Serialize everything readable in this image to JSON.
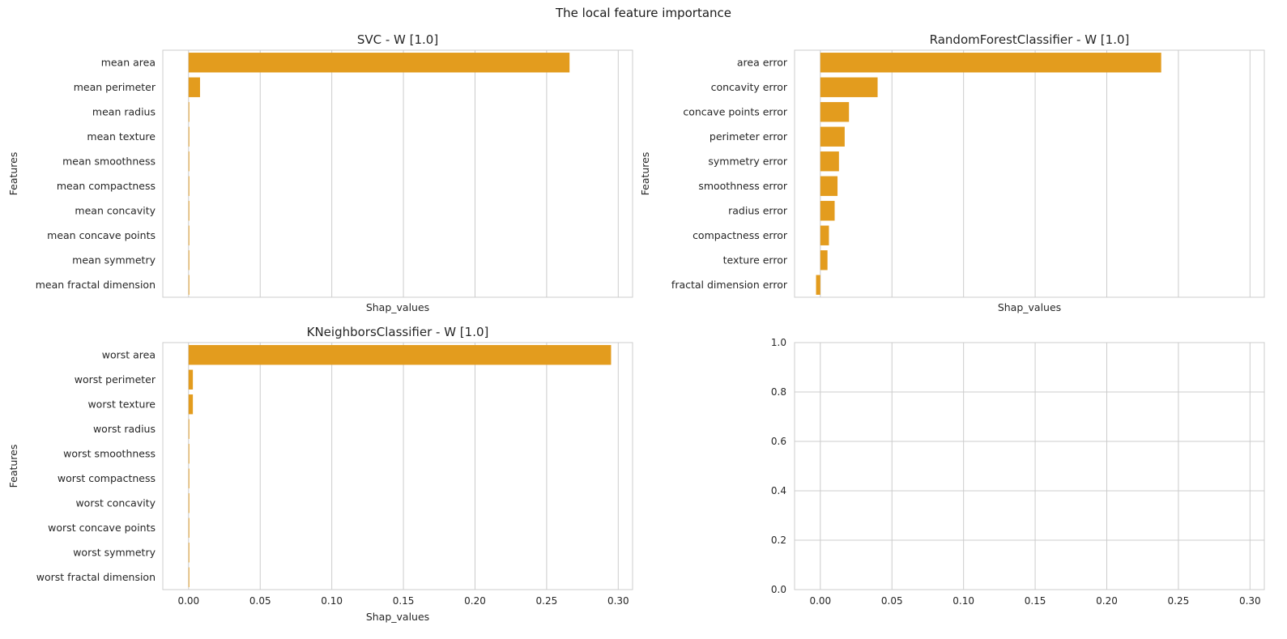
{
  "figure": {
    "title": "The local feature importance"
  },
  "colors": {
    "bar": "#E39C1E",
    "grid": "#cccccc",
    "frame": "#cccccc"
  },
  "chart_data": [
    {
      "type": "bar",
      "orientation": "horizontal",
      "title": "SVC - W [1.0]",
      "xlabel": "Shap_values",
      "ylabel": "Features",
      "xlim": [
        -0.018,
        0.31
      ],
      "xticks": [
        0.0,
        0.05,
        0.1,
        0.15,
        0.2,
        0.25,
        0.3
      ],
      "show_xtick_labels": false,
      "categories": [
        "mean area",
        "mean perimeter",
        "mean radius",
        "mean texture",
        "mean smoothness",
        "mean compactness",
        "mean concavity",
        "mean concave points",
        "mean symmetry",
        "mean fractal dimension"
      ],
      "values": [
        0.266,
        0.008,
        0.0005,
        0.0005,
        0.0005,
        0.0005,
        0.0005,
        0.0005,
        0.0005,
        0.0005
      ]
    },
    {
      "type": "bar",
      "orientation": "horizontal",
      "title": "RandomForestClassifier - W [1.0]",
      "xlabel": "Shap_values",
      "ylabel": "Features",
      "xlim": [
        -0.018,
        0.31
      ],
      "xticks": [
        0.0,
        0.05,
        0.1,
        0.15,
        0.2,
        0.25,
        0.3
      ],
      "show_xtick_labels": false,
      "categories": [
        "area error",
        "concavity error",
        "concave points error",
        "perimeter error",
        "symmetry error",
        "smoothness error",
        "radius error",
        "compactness error",
        "texture error",
        "fractal dimension error"
      ],
      "values": [
        0.238,
        0.04,
        0.02,
        0.017,
        0.013,
        0.012,
        0.01,
        0.006,
        0.005,
        -0.003
      ]
    },
    {
      "type": "bar",
      "orientation": "horizontal",
      "title": "KNeighborsClassifier - W [1.0]",
      "xlabel": "Shap_values",
      "ylabel": "Features",
      "xlim": [
        -0.018,
        0.31
      ],
      "xticks": [
        0.0,
        0.05,
        0.1,
        0.15,
        0.2,
        0.25,
        0.3
      ],
      "xtick_labels": [
        "0.00",
        "0.05",
        "0.10",
        "0.15",
        "0.20",
        "0.25",
        "0.30"
      ],
      "show_xtick_labels": true,
      "categories": [
        "worst area",
        "worst perimeter",
        "worst texture",
        "worst radius",
        "worst smoothness",
        "worst compactness",
        "worst concavity",
        "worst concave points",
        "worst symmetry",
        "worst fractal dimension"
      ],
      "values": [
        0.295,
        0.003,
        0.003,
        0.0005,
        0.0005,
        0.0005,
        0.0005,
        0.0005,
        0.0005,
        0.0005
      ]
    },
    {
      "type": "empty",
      "title": "",
      "xlim": [
        -0.018,
        0.31
      ],
      "ylim": [
        0,
        1
      ],
      "xticks": [
        0.0,
        0.05,
        0.1,
        0.15,
        0.2,
        0.25,
        0.3
      ],
      "xtick_labels": [
        "0.00",
        "0.05",
        "0.10",
        "0.15",
        "0.20",
        "0.25",
        "0.30"
      ],
      "yticks": [
        0.0,
        0.2,
        0.4,
        0.6,
        0.8,
        1.0
      ],
      "ytick_labels": [
        "0.0",
        "0.2",
        "0.4",
        "0.6",
        "0.8",
        "1.0"
      ]
    }
  ]
}
